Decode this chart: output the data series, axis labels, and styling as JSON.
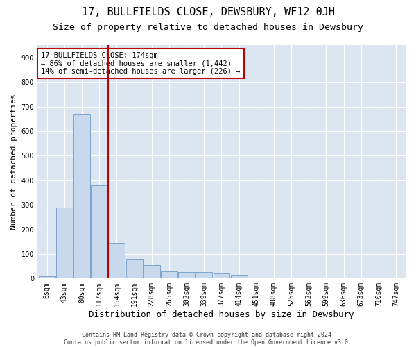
{
  "title": "17, BULLFIELDS CLOSE, DEWSBURY, WF12 0JH",
  "subtitle": "Size of property relative to detached houses in Dewsbury",
  "xlabel": "Distribution of detached houses by size in Dewsbury",
  "ylabel": "Number of detached properties",
  "footnote": "Contains HM Land Registry data © Crown copyright and database right 2024.\nContains public sector information licensed under the Open Government Licence v3.0.",
  "bar_labels": [
    "6sqm",
    "43sqm",
    "80sqm",
    "117sqm",
    "154sqm",
    "191sqm",
    "228sqm",
    "265sqm",
    "302sqm",
    "339sqm",
    "377sqm",
    "414sqm",
    "451sqm",
    "488sqm",
    "525sqm",
    "562sqm",
    "599sqm",
    "636sqm",
    "673sqm",
    "710sqm",
    "747sqm"
  ],
  "bar_values": [
    10,
    290,
    670,
    380,
    145,
    80,
    55,
    30,
    25,
    25,
    20,
    15,
    0,
    0,
    0,
    0,
    0,
    0,
    0,
    0,
    0
  ],
  "bar_color": "#c8d9ee",
  "bar_edge_color": "#7ca4cc",
  "highlight_bar_color": "#c00000",
  "vline_x": 3.5,
  "vline_color": "#c00000",
  "annotation_text": "17 BULLFIELDS CLOSE: 174sqm\n← 86% of detached houses are smaller (1,442)\n14% of semi-detached houses are larger (226) →",
  "annotation_box_color": "#ffffff",
  "annotation_box_edge": "#c00000",
  "ylim": [
    0,
    950
  ],
  "yticks": [
    0,
    100,
    200,
    300,
    400,
    500,
    600,
    700,
    800,
    900
  ],
  "background_color": "#dce6f1",
  "plot_bg_color": "#dce6f1",
  "grid_color": "#ffffff",
  "title_fontsize": 11,
  "subtitle_fontsize": 9.5,
  "xlabel_fontsize": 9,
  "ylabel_fontsize": 8,
  "tick_fontsize": 7,
  "annotation_fontsize": 7.5,
  "footnote_fontsize": 6
}
